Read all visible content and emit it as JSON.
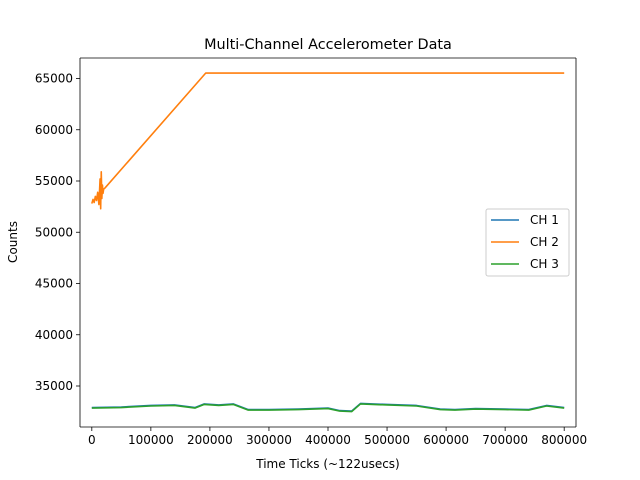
{
  "chart_data": {
    "type": "line",
    "title": "Multi-Channel Accelerometer Data",
    "xlabel": "Time Ticks (~122usecs)",
    "ylabel": "Counts",
    "xlim": [
      -20000,
      820000
    ],
    "ylim": [
      31000,
      67000
    ],
    "xticks": [
      0,
      100000,
      200000,
      300000,
      400000,
      500000,
      600000,
      700000,
      800000
    ],
    "yticks": [
      35000,
      40000,
      45000,
      50000,
      55000,
      60000,
      65000
    ],
    "grid": false,
    "legend_position": "center-right",
    "series": [
      {
        "name": "CH 1",
        "color": "#1f77b4",
        "x": [
          0,
          50000,
          100000,
          140000,
          175000,
          190000,
          215000,
          240000,
          265000,
          300000,
          350000,
          400000,
          420000,
          440000,
          455000,
          500000,
          550000,
          590000,
          615000,
          650000,
          700000,
          740000,
          770000,
          800000
        ],
        "y": [
          32900,
          32950,
          33100,
          33150,
          32900,
          33250,
          33150,
          33250,
          32700,
          32700,
          32750,
          32850,
          32600,
          32550,
          33300,
          33200,
          33100,
          32750,
          32700,
          32800,
          32750,
          32700,
          33100,
          32900
        ]
      },
      {
        "name": "CH 2",
        "color": "#ff7f0e",
        "x": [
          0,
          2000,
          4000,
          6000,
          8000,
          10000,
          12000,
          14000,
          15000,
          16000,
          17000,
          18000,
          19000,
          20000,
          22000,
          193000,
          300000,
          500000,
          700000,
          800000
        ],
        "y": [
          52800,
          53200,
          52900,
          53500,
          53100,
          53900,
          52700,
          55200,
          52300,
          55900,
          53300,
          54600,
          53800,
          54200,
          54300,
          65535,
          65535,
          65535,
          65535,
          65535
        ]
      },
      {
        "name": "CH 3",
        "color": "#2ca02c",
        "x": [
          0,
          50000,
          100000,
          140000,
          175000,
          190000,
          215000,
          240000,
          265000,
          300000,
          350000,
          400000,
          420000,
          440000,
          455000,
          500000,
          550000,
          590000,
          615000,
          650000,
          700000,
          740000,
          770000,
          800000
        ],
        "y": [
          32850,
          32900,
          33050,
          33100,
          32850,
          33200,
          33100,
          33200,
          32650,
          32650,
          32700,
          32800,
          32550,
          32500,
          33250,
          33150,
          33050,
          32700,
          32650,
          32750,
          32700,
          32650,
          33050,
          32850
        ]
      }
    ]
  }
}
